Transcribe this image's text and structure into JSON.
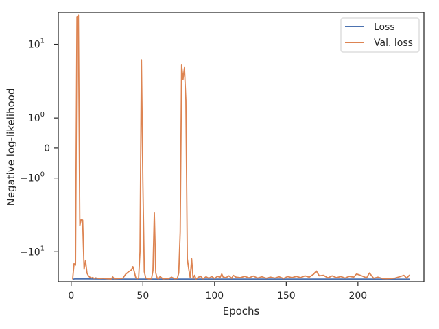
{
  "chart_data": {
    "type": "line",
    "xlabel": "Epochs",
    "ylabel": "Negative log-likelihood",
    "xlim": [
      -9,
      246
    ],
    "yscale": "symlog",
    "ylim": [
      -21,
      22
    ],
    "grid": false,
    "legend_position": "top-right",
    "x_ticks": [
      0,
      50,
      100,
      150,
      200
    ],
    "y_ticks": [
      {
        "value": 10,
        "base": "10",
        "exp": "1"
      },
      {
        "value": 1,
        "base": "10",
        "exp": "0"
      },
      {
        "value": 0,
        "base": "0",
        "exp": ""
      },
      {
        "value": -1,
        "base": "−10",
        "exp": "0"
      },
      {
        "value": -10,
        "base": "−10",
        "exp": "1"
      }
    ],
    "series": [
      {
        "name": "Loss",
        "color": "#4c72b0",
        "x": [
          1,
          2,
          3,
          5,
          10,
          20,
          40,
          80,
          120,
          160,
          200,
          236
        ],
        "y": [
          -19.8,
          -19.65,
          -19.6,
          -19.55,
          -19.6,
          -19.65,
          -19.68,
          -19.7,
          -19.7,
          -19.7,
          -19.72,
          -19.75
        ]
      },
      {
        "name": "Val. loss",
        "color": "#dd8452",
        "x": [
          1,
          2,
          3,
          4,
          5,
          6,
          7,
          8,
          9,
          10,
          11,
          12,
          13,
          14,
          15,
          16,
          17,
          18,
          20,
          22,
          25,
          28,
          29,
          30,
          33,
          36,
          38,
          40,
          42,
          43,
          44,
          45,
          46,
          47,
          48,
          49,
          50,
          51,
          52,
          54,
          56,
          57,
          58,
          59,
          60,
          61,
          62,
          64,
          66,
          68,
          70,
          72,
          74,
          75,
          76,
          77,
          78,
          79,
          80,
          81,
          82,
          83,
          84,
          85,
          86,
          87,
          88,
          90,
          92,
          94,
          96,
          98,
          100,
          102,
          104,
          105,
          106,
          108,
          110,
          112,
          113,
          115,
          118,
          121,
          124,
          127,
          130,
          133,
          136,
          139,
          142,
          145,
          148,
          151,
          154,
          157,
          160,
          163,
          166,
          169,
          171,
          173,
          176,
          179,
          182,
          185,
          188,
          191,
          194,
          197,
          199,
          201,
          203,
          206,
          208,
          211,
          214,
          217,
          220,
          223,
          226,
          229,
          232,
          234,
          236
        ],
        "y": [
          -19.8,
          -13.5,
          -14.0,
          19.5,
          20.5,
          -5.0,
          -4.2,
          -4.3,
          -15.5,
          -12.5,
          -17.0,
          -18.2,
          -18.8,
          -19.2,
          -18.9,
          -19.4,
          -19.1,
          -19.3,
          -19.4,
          -19.3,
          -19.5,
          -19.6,
          -18.7,
          -19.5,
          -19.4,
          -19.3,
          -17.5,
          -16.5,
          -15.8,
          -14.5,
          -16.5,
          -19.0,
          -19.5,
          -19.2,
          -10.0,
          6.7,
          -1.2,
          -16.5,
          -19.2,
          -19.6,
          -19.5,
          -16.0,
          -3.5,
          -17.0,
          -19.3,
          -19.5,
          -18.5,
          -19.6,
          -19.4,
          -19.5,
          -18.8,
          -19.5,
          -19.4,
          -17.0,
          -6.0,
          5.8,
          3.9,
          5.4,
          2.0,
          -12.0,
          -15.5,
          -19.0,
          -12.0,
          -19.5,
          -18.0,
          -19.6,
          -19.2,
          -18.3,
          -19.5,
          -18.6,
          -19.3,
          -18.5,
          -19.4,
          -18.4,
          -18.8,
          -17.4,
          -18.8,
          -19.0,
          -18.2,
          -19.3,
          -18.0,
          -18.8,
          -19.0,
          -18.4,
          -19.1,
          -18.3,
          -19.2,
          -18.6,
          -19.3,
          -18.8,
          -19.2,
          -18.6,
          -19.4,
          -18.5,
          -19.0,
          -18.4,
          -19.0,
          -18.2,
          -18.8,
          -17.5,
          -16.2,
          -18.2,
          -18.0,
          -19.1,
          -18.2,
          -19.0,
          -18.5,
          -19.2,
          -18.4,
          -18.8,
          -17.4,
          -17.8,
          -18.3,
          -19.1,
          -17.0,
          -19.3,
          -18.8,
          -19.4,
          -19.5,
          -19.4,
          -19.2,
          -18.6,
          -18.0,
          -19.2,
          -17.8
        ]
      }
    ]
  }
}
